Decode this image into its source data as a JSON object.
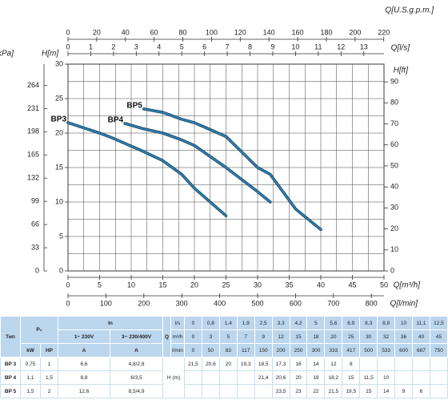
{
  "chart_data": {
    "type": "line",
    "xlabel": "Q[m³/h]",
    "xlim": [
      0,
      50
    ],
    "xticks": [
      0,
      5,
      10,
      15,
      20,
      25,
      30,
      35,
      40,
      45,
      50
    ],
    "ylabel": "H[m]",
    "ylim": [
      0,
      30
    ],
    "yticks": [
      0,
      5,
      10,
      15,
      20,
      25,
      30
    ],
    "grid": true,
    "secondary_axes": [
      {
        "label": "Q[U.S.g.p.m.]",
        "side": "top",
        "lim": [
          0,
          220.15
        ],
        "ticks": [
          0,
          20,
          40,
          60,
          80,
          100,
          120,
          140,
          160,
          180,
          200,
          220
        ]
      },
      {
        "label": "Q[l/s]",
        "side": "top",
        "lim": [
          0,
          13.889
        ],
        "ticks": [
          0,
          1,
          2,
          3,
          4,
          5,
          6,
          7,
          8,
          9,
          10,
          11,
          12,
          13
        ]
      },
      {
        "label": "Q[l/min]",
        "side": "bottom",
        "lim": [
          0,
          833.33
        ],
        "ticks": [
          0,
          100,
          200,
          300,
          400,
          500,
          600,
          700,
          800
        ]
      },
      {
        "label": "H[kPa]",
        "side": "left",
        "lim": [
          0,
          294.2
        ],
        "ticks": [
          0,
          33,
          66,
          99,
          132,
          165,
          198,
          231,
          264
        ]
      },
      {
        "label": "H[ft]",
        "side": "right",
        "lim": [
          0,
          98.43
        ],
        "ticks": [
          0,
          10,
          20,
          30,
          40,
          50,
          60,
          70,
          80,
          90
        ]
      }
    ],
    "x": [
      0,
      3,
      5,
      7,
      9,
      12,
      15,
      18,
      20,
      25,
      30,
      32,
      36,
      40,
      45
    ],
    "series": [
      {
        "name": "BP3",
        "color": "#2b7db0",
        "values": [
          21.5,
          20.6,
          20,
          19.3,
          18.5,
          17.3,
          16,
          14,
          12,
          8,
          null,
          null,
          null,
          null,
          null
        ]
      },
      {
        "name": "BP4",
        "color": "#2b7db0",
        "values": [
          null,
          null,
          null,
          null,
          21.4,
          20.6,
          20,
          19,
          18.2,
          15,
          11.5,
          10,
          null,
          null,
          null
        ]
      },
      {
        "name": "BP5",
        "color": "#2b7db0",
        "values": [
          null,
          null,
          null,
          null,
          null,
          23.5,
          23,
          22,
          21.5,
          19.5,
          15,
          14,
          9,
          6,
          null
        ]
      }
    ]
  },
  "table": {
    "type_header": "Тип",
    "power_header": "P₂",
    "current_header": "In",
    "current_1ph": "1~ 230V",
    "current_3ph": "3~ 230/400V",
    "q_header": "Q",
    "units": [
      "kW",
      "HP",
      "A",
      "A"
    ],
    "flow_rows": [
      {
        "unit": "l/s",
        "values": [
          "0",
          "0,8",
          "1,4",
          "1,9",
          "2,5",
          "3,3",
          "4,2",
          "5",
          "5,6",
          "6,9",
          "8,3",
          "8,9",
          "10",
          "11,1",
          "12,5"
        ]
      },
      {
        "unit": "m³/h",
        "values": [
          "0",
          "3",
          "5",
          "7",
          "9",
          "12",
          "15",
          "18",
          "20",
          "25",
          "30",
          "32",
          "36",
          "40",
          "45"
        ]
      },
      {
        "unit": "l/min",
        "values": [
          "0",
          "50",
          "83",
          "117",
          "150",
          "200",
          "250",
          "300",
          "333",
          "417",
          "500",
          "533",
          "600",
          "667",
          "750"
        ]
      }
    ],
    "head_label": "H (m)",
    "rows": [
      {
        "model": "BP 3",
        "kw": "0,75",
        "hp": "1",
        "a1": "6,6",
        "a3": "4,8/2,8",
        "head": [
          "21,5",
          "20,6",
          "20",
          "19,3",
          "18,5",
          "17,3",
          "16",
          "14",
          "12",
          "8",
          null,
          null,
          null,
          null,
          null
        ]
      },
      {
        "model": "BP 4",
        "kw": "1,1",
        "hp": "1,5",
        "a1": "8,8",
        "a3": "6/3,5",
        "head": [
          null,
          null,
          null,
          null,
          "21,4",
          "20,6",
          "20",
          "19",
          "18,2",
          "15",
          "11,5",
          "10",
          null,
          null,
          null
        ]
      },
      {
        "model": "BP 5",
        "kw": "1,5",
        "hp": "2",
        "a1": "12,6",
        "a3": "8,5/4,9",
        "head": [
          null,
          null,
          null,
          null,
          null,
          "23,5",
          "23",
          "22",
          "21,5",
          "19,5",
          "15",
          "14",
          "9",
          "6",
          null
        ]
      }
    ]
  }
}
